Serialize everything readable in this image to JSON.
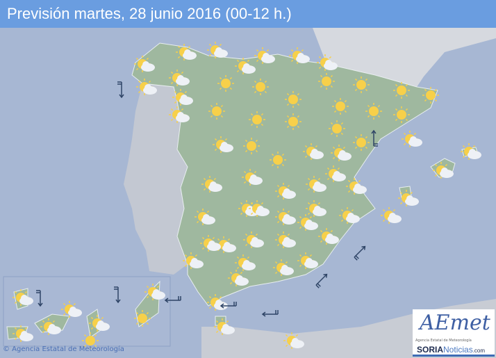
{
  "header": {
    "title": "Previsión martes, 28 junio 2016 (00-12 h.)"
  },
  "map": {
    "colors": {
      "sea": "#a7b7d3",
      "spain": "#9fb89f",
      "portugal": "#c3c8d2",
      "france": "#d6d9df",
      "africa": "#c8ccd4",
      "sun": "#f7d04a",
      "cloud": "#eef1f6",
      "wind": "#2e4466"
    },
    "weather_icons": [
      "sun-cloud",
      "sun-cloud",
      "sun-cloud",
      "sun-cloud",
      "sun-cloud",
      "sun-cloud",
      "sun-cloud",
      "sun",
      "sun",
      "sun-cloud",
      "sun-cloud",
      "sun-cloud",
      "sun",
      "sun",
      "sun",
      "sun",
      "sun",
      "sun",
      "sun",
      "sun",
      "sun",
      "sun",
      "sun",
      "sun",
      "sun",
      "sun-cloud",
      "sun",
      "sun",
      "sun-cloud",
      "sun-cloud",
      "sun-cloud",
      "sun-cloud",
      "sun-cloud",
      "sun-cloud",
      "sun-cloud",
      "sun-cloud",
      "sun-cloud",
      "sun-cloud",
      "sun-cloud",
      "sun-cloud",
      "sun-cloud",
      "sun-cloud",
      "sun-cloud",
      "sun-cloud",
      "sun-cloud",
      "sun-cloud",
      "sun-cloud",
      "sun-cloud",
      "sun-cloud",
      "sun-cloud",
      "sun-cloud",
      "sun-cloud",
      "sun-cloud",
      "sun-cloud",
      "sun-cloud",
      "sun-cloud",
      "sun-cloud",
      "sun-cloud",
      "sun-cloud",
      "sun-cloud",
      "sun-cloud",
      "sun-cloud"
    ],
    "canary_icons": [
      "sun-cloud",
      "sun-cloud",
      "sun-cloud",
      "sun-cloud",
      "sun-cloud",
      "sun-cloud",
      "sun",
      "sun"
    ],
    "wind_arrows": [
      "south",
      "north",
      "northeast",
      "northeast",
      "west",
      "west",
      "west",
      "south",
      "south"
    ]
  },
  "footer": {
    "copyright": "© Agencia Estatal de Meteorología"
  },
  "logo": {
    "brand": "AEmet",
    "subtitle": "Agencia Estatal de Meteorología",
    "soria": "SORIA",
    "noticias": "Noticias",
    "com": ".com"
  }
}
